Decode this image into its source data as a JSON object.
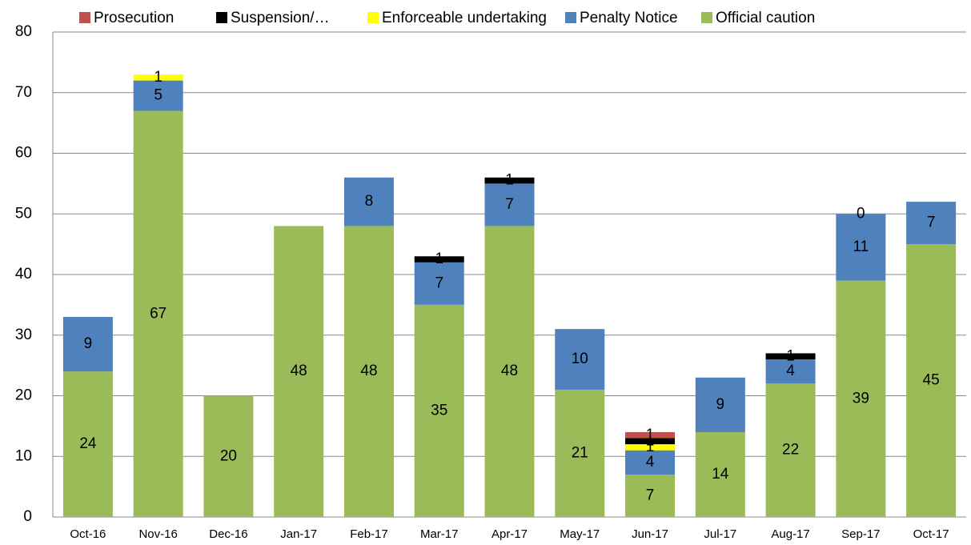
{
  "chart_data": {
    "type": "stacked_bar",
    "categories": [
      "Oct-16",
      "Nov-16",
      "Dec-16",
      "Jan-17",
      "Feb-17",
      "Mar-17",
      "Apr-17",
      "May-17",
      "Jun-17",
      "Jul-17",
      "Aug-17",
      "Sep-17",
      "Oct-17"
    ],
    "series": [
      {
        "name": "Official caution",
        "color": "#9bbb59",
        "values": [
          24,
          67,
          20,
          48,
          48,
          35,
          48,
          21,
          7,
          14,
          22,
          39,
          45
        ]
      },
      {
        "name": "Penalty Notice",
        "color": "#4f81bd",
        "values": [
          9,
          5,
          null,
          null,
          8,
          7,
          7,
          10,
          4,
          9,
          4,
          11,
          7
        ]
      },
      {
        "name": "Enforceable undertaking",
        "color": "#ffff00",
        "values": [
          null,
          1,
          null,
          null,
          null,
          null,
          null,
          null,
          1,
          null,
          null,
          null,
          null
        ]
      },
      {
        "name": "Suspension/…",
        "color": "#000000",
        "values": [
          null,
          null,
          null,
          null,
          null,
          1,
          1,
          null,
          1,
          null,
          1,
          0,
          null
        ]
      },
      {
        "name": "Prosecution",
        "color": "#c0504d",
        "values": [
          null,
          null,
          null,
          null,
          null,
          null,
          null,
          null,
          1,
          null,
          null,
          null,
          null
        ]
      }
    ],
    "ylim": [
      0,
      80
    ],
    "yticks": [
      0,
      10,
      20,
      30,
      40,
      50,
      60,
      70,
      80
    ],
    "grid": true,
    "legend": "top"
  }
}
